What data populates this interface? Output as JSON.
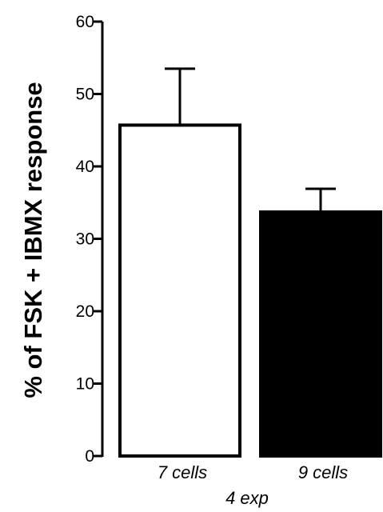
{
  "chart_data": {
    "type": "bar",
    "ylabel": "% of FSK + IBMX response",
    "ylim": [
      0,
      60
    ],
    "yticks": [
      0,
      10,
      20,
      30,
      40,
      50,
      60
    ],
    "grid": false,
    "categories": [
      "7 cells",
      "9 cells"
    ],
    "values": [
      45.7,
      33.7
    ],
    "errors": [
      7.8,
      3.2
    ],
    "bar_fills": [
      "#ffffff",
      "#000000"
    ],
    "annotation": "4 exp"
  }
}
